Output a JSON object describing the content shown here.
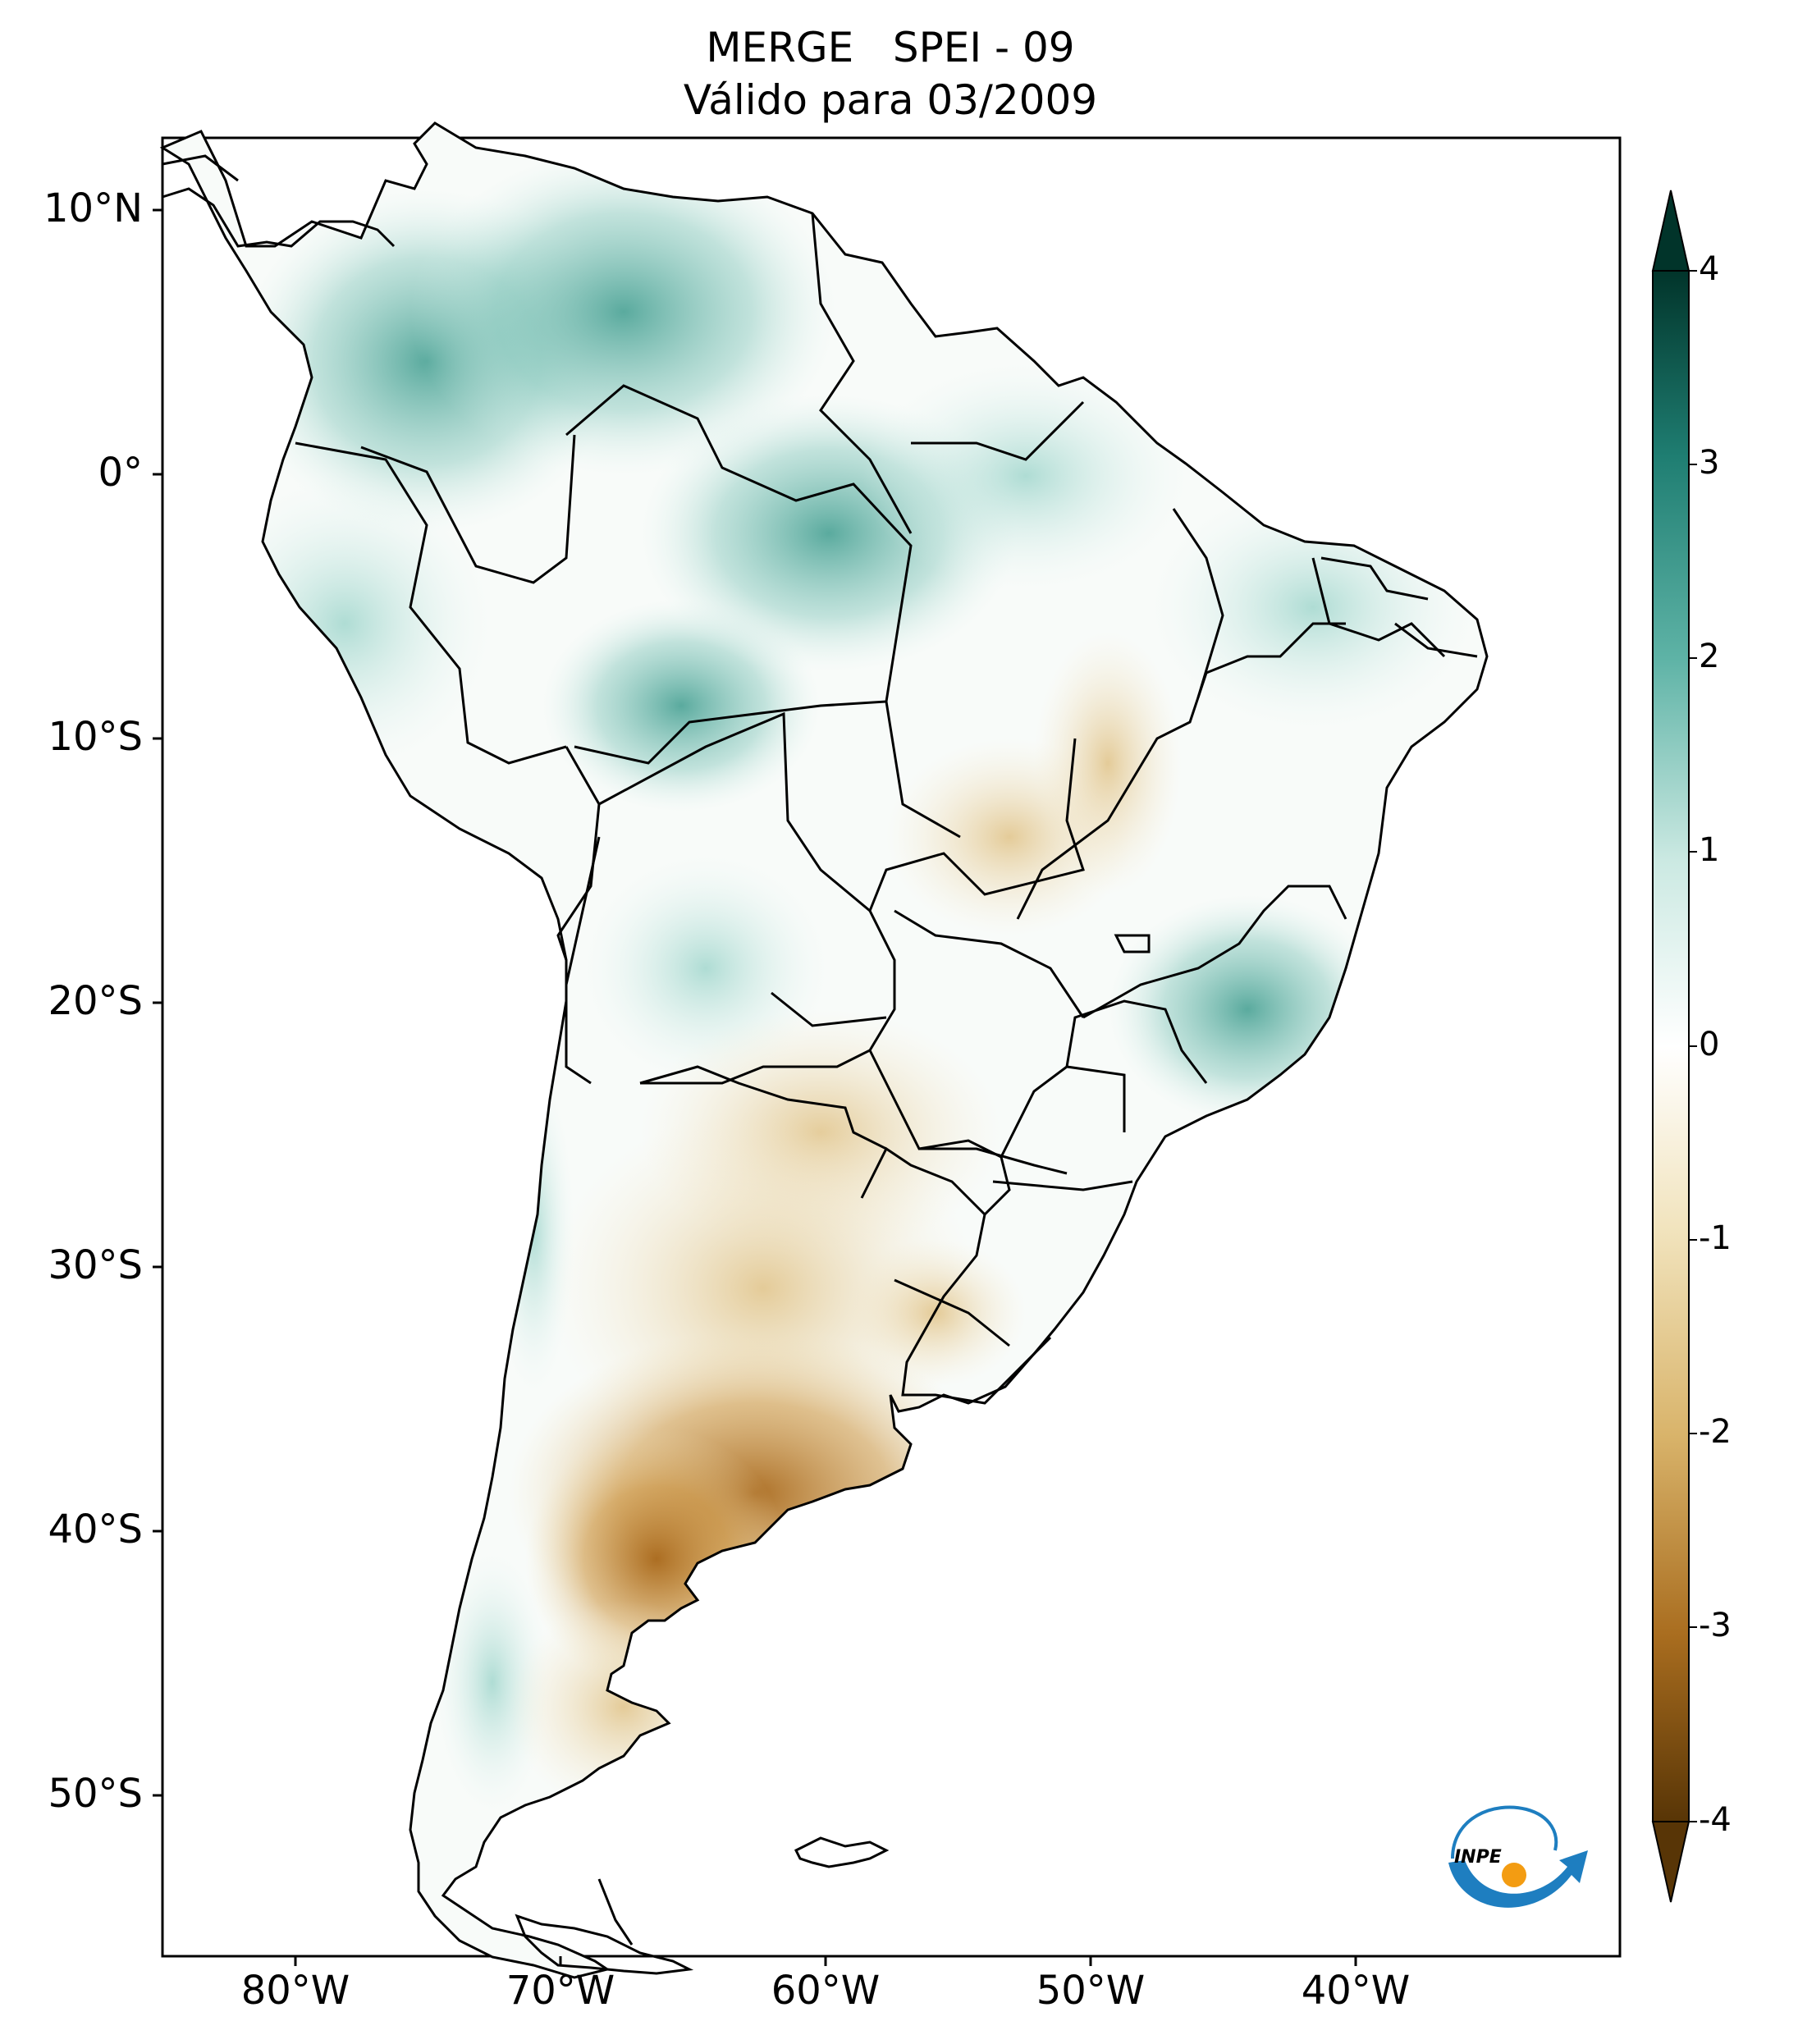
{
  "title_line1": "MERGE   SPEI - 09",
  "title_line2": "Válido para 03/2009",
  "lat_ticks": [
    "10°N",
    "0°",
    "10°S",
    "20°S",
    "30°S",
    "40°S",
    "50°S"
  ],
  "lon_ticks": [
    "80°W",
    "70°W",
    "60°W",
    "50°W",
    "40°W"
  ],
  "colorbar": {
    "ticks": [
      "4",
      "3",
      "2",
      "1",
      "0",
      "-1",
      "-2",
      "-3",
      "-4"
    ],
    "colors": {
      "max": "#01342a",
      "high": "#1f7e72",
      "mid_high": "#5eb3a6",
      "low_pos": "#cbe9e2",
      "zero": "#ffffff",
      "low_neg": "#f1e3bc",
      "mid_low": "#d9b46b",
      "low": "#a96d1f",
      "min": "#583506"
    }
  },
  "logo": {
    "text": "INPE"
  }
}
